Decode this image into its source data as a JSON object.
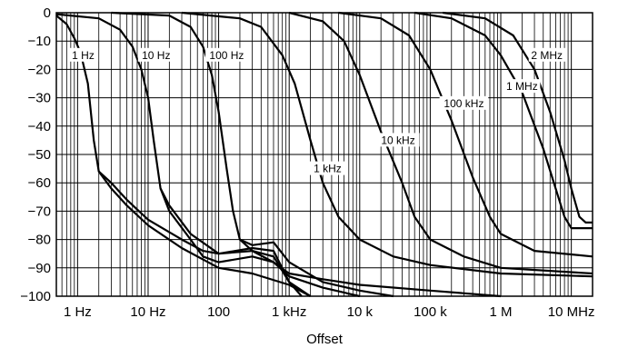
{
  "chart_data": {
    "type": "line",
    "title": "",
    "xlabel": "Offset",
    "ylabel": "",
    "x_scale": "log",
    "xlim": [
      0.5,
      20000000
    ],
    "ylim": [
      -100,
      0
    ],
    "grid": true,
    "x_ticks": [
      {
        "value": 1,
        "label": "1 Hz"
      },
      {
        "value": 10,
        "label": "10 Hz"
      },
      {
        "value": 100,
        "label": "100"
      },
      {
        "value": 1000,
        "label": "1 kHz"
      },
      {
        "value": 10000,
        "label": "10 k"
      },
      {
        "value": 100000,
        "label": "100 k"
      },
      {
        "value": 1000000,
        "label": "1 M"
      },
      {
        "value": 10000000,
        "label": "10 MHz"
      }
    ],
    "y_ticks": [
      {
        "value": 0,
        "label": "0"
      },
      {
        "value": -10,
        "label": "−10"
      },
      {
        "value": -20,
        "label": "−20"
      },
      {
        "value": -30,
        "label": "−30"
      },
      {
        "value": -40,
        "label": "−40"
      },
      {
        "value": -50,
        "label": "−50"
      },
      {
        "value": -60,
        "label": "−60"
      },
      {
        "value": -70,
        "label": "−70"
      },
      {
        "value": -80,
        "label": "−80"
      },
      {
        "value": -90,
        "label": "−90"
      },
      {
        "value": -100,
        "label": "−100"
      }
    ],
    "series": [
      {
        "name": "1 Hz",
        "label_at": [
          1.2,
          -15
        ],
        "points": [
          [
            0.5,
            -1
          ],
          [
            0.7,
            -4
          ],
          [
            0.9,
            -9
          ],
          [
            1.1,
            -14
          ],
          [
            1.4,
            -25
          ],
          [
            1.7,
            -45
          ],
          [
            2,
            -56
          ],
          [
            3,
            -62
          ],
          [
            5,
            -68
          ],
          [
            10,
            -75
          ],
          [
            30,
            -83
          ],
          [
            100,
            -90
          ],
          [
            300,
            -92
          ],
          [
            1000,
            -96
          ],
          [
            2000,
            -100
          ]
        ]
      },
      {
        "name": "",
        "points": [
          [
            2,
            -56
          ],
          [
            3,
            -60
          ],
          [
            5,
            -66
          ],
          [
            10,
            -73
          ],
          [
            30,
            -80
          ],
          [
            60,
            -84
          ],
          [
            100,
            -85
          ],
          [
            300,
            -84
          ],
          [
            600,
            -86
          ],
          [
            1000,
            -95
          ],
          [
            1500,
            -100
          ]
        ]
      },
      {
        "name": "10 Hz",
        "label_at": [
          13,
          -15
        ],
        "points": [
          [
            0.5,
            -0.5
          ],
          [
            2,
            -2
          ],
          [
            4,
            -6
          ],
          [
            6,
            -12
          ],
          [
            8,
            -20
          ],
          [
            10,
            -30
          ],
          [
            12,
            -45
          ],
          [
            15,
            -62
          ],
          [
            20,
            -68
          ],
          [
            40,
            -78
          ],
          [
            100,
            -85
          ],
          [
            300,
            -83
          ],
          [
            600,
            -84
          ],
          [
            1000,
            -95
          ],
          [
            2000,
            -100
          ]
        ]
      },
      {
        "name": "",
        "points": [
          [
            15,
            -62
          ],
          [
            20,
            -70
          ],
          [
            40,
            -80
          ],
          [
            60,
            -86
          ],
          [
            100,
            -88
          ],
          [
            300,
            -86
          ],
          [
            600,
            -88
          ],
          [
            1000,
            -93
          ],
          [
            3000,
            -97
          ],
          [
            10000,
            -100
          ]
        ]
      },
      {
        "name": "100 Hz",
        "label_at": [
          130,
          -15
        ],
        "points": [
          [
            3,
            0
          ],
          [
            20,
            -1
          ],
          [
            40,
            -5
          ],
          [
            60,
            -12
          ],
          [
            80,
            -22
          ],
          [
            100,
            -35
          ],
          [
            130,
            -55
          ],
          [
            160,
            -70
          ],
          [
            200,
            -80
          ],
          [
            300,
            -82
          ],
          [
            600,
            -81
          ],
          [
            1000,
            -88
          ],
          [
            3000,
            -95
          ],
          [
            10000,
            -98
          ],
          [
            30000,
            -100
          ]
        ]
      },
      {
        "name": "",
        "points": [
          [
            200,
            -80
          ],
          [
            300,
            -84
          ],
          [
            600,
            -88
          ],
          [
            1000,
            -92
          ],
          [
            3000,
            -94
          ],
          [
            10000,
            -96
          ],
          [
            100000,
            -98
          ],
          [
            1000000,
            -100
          ]
        ]
      },
      {
        "name": "1 kHz",
        "label_at": [
          3500,
          -55
        ],
        "points": [
          [
            30,
            0
          ],
          [
            200,
            -2
          ],
          [
            400,
            -5
          ],
          [
            800,
            -15
          ],
          [
            1200,
            -25
          ],
          [
            2000,
            -45
          ],
          [
            3000,
            -60
          ],
          [
            5000,
            -72
          ],
          [
            10000,
            -80
          ],
          [
            30000,
            -86
          ],
          [
            100000,
            -89
          ],
          [
            1000000,
            -92
          ],
          [
            20000000,
            -93
          ]
        ]
      },
      {
        "name": "10 kHz",
        "label_at": [
          35000,
          -45
        ],
        "points": [
          [
            1000,
            0
          ],
          [
            3000,
            -3
          ],
          [
            6000,
            -10
          ],
          [
            10000,
            -22
          ],
          [
            20000,
            -42
          ],
          [
            40000,
            -60
          ],
          [
            60000,
            -72
          ],
          [
            100000,
            -80
          ],
          [
            300000,
            -86
          ],
          [
            1000000,
            -90
          ],
          [
            20000000,
            -92
          ]
        ]
      },
      {
        "name": "100 kHz",
        "label_at": [
          300000,
          -32
        ],
        "points": [
          [
            5000,
            0
          ],
          [
            20000,
            -2
          ],
          [
            50000,
            -8
          ],
          [
            100000,
            -20
          ],
          [
            200000,
            -38
          ],
          [
            400000,
            -58
          ],
          [
            700000,
            -72
          ],
          [
            1000000,
            -78
          ],
          [
            3000000,
            -84
          ],
          [
            20000000,
            -86
          ]
        ]
      },
      {
        "name": "1 MHz",
        "label_at": [
          2000000,
          -26
        ],
        "points": [
          [
            60000,
            0
          ],
          [
            200000,
            -2
          ],
          [
            600000,
            -8
          ],
          [
            1000000,
            -15
          ],
          [
            2000000,
            -28
          ],
          [
            4000000,
            -48
          ],
          [
            6000000,
            -62
          ],
          [
            8000000,
            -72
          ],
          [
            10000000,
            -76
          ],
          [
            20000000,
            -76
          ]
        ]
      },
      {
        "name": "2 MHz",
        "label_at": [
          4500000,
          -15
        ],
        "points": [
          [
            150000,
            0
          ],
          [
            600000,
            -2
          ],
          [
            1500000,
            -8
          ],
          [
            3000000,
            -20
          ],
          [
            5000000,
            -35
          ],
          [
            8000000,
            -52
          ],
          [
            10000000,
            -62
          ],
          [
            13000000,
            -72
          ],
          [
            16000000,
            -74
          ],
          [
            20000000,
            -74
          ]
        ]
      }
    ]
  }
}
